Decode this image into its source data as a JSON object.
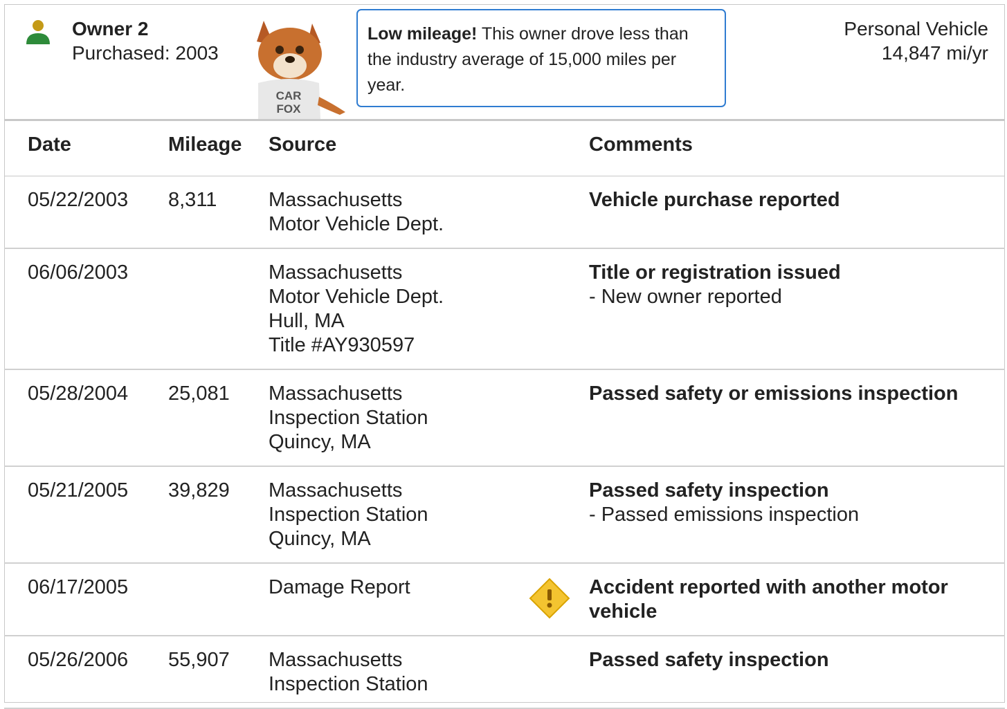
{
  "owner": {
    "title": "Owner 2",
    "purchased": "Purchased: 2003",
    "usage": "Personal Vehicle",
    "mileage_rate": "14,847 mi/yr"
  },
  "mascot_shirt": [
    "CAR",
    "FOX"
  ],
  "notice": {
    "bold": "Low mileage!",
    "text": "This owner drove less than the industry average of 15,000 miles per year."
  },
  "table": {
    "columns": [
      "Date",
      "Mileage",
      "Source",
      "Comments"
    ],
    "rows": [
      {
        "date": "05/22/2003",
        "mileage": "8,311",
        "source": [
          "Massachusetts",
          "Motor Vehicle Dept."
        ],
        "comment": "Vehicle purchase reported"
      },
      {
        "date": "06/06/2003",
        "source": [
          "Massachusetts",
          "Motor Vehicle Dept.",
          "Hull, MA",
          "Title #AY930597"
        ],
        "comment": "Title or registration issued",
        "details": [
          "- New owner reported"
        ]
      },
      {
        "date": "05/28/2004",
        "mileage": "25,081",
        "source": [
          "Massachusetts",
          "Inspection Station",
          "Quincy, MA"
        ],
        "comment": "Passed safety or emissions inspection"
      },
      {
        "date": "05/21/2005",
        "mileage": "39,829",
        "source": [
          "Massachusetts",
          "Inspection Station",
          "Quincy, MA"
        ],
        "comment": "Passed safety inspection",
        "details": [
          "- Passed emissions inspection"
        ]
      },
      {
        "date": "06/17/2005",
        "source": [
          "Damage Report"
        ],
        "comment": "Accident reported with another motor vehicle",
        "alert": true
      },
      {
        "date": "05/26/2006",
        "mileage": "55,907",
        "source": [
          "Massachusetts",
          "Inspection Station"
        ],
        "comment": "Passed safety inspection"
      }
    ]
  }
}
